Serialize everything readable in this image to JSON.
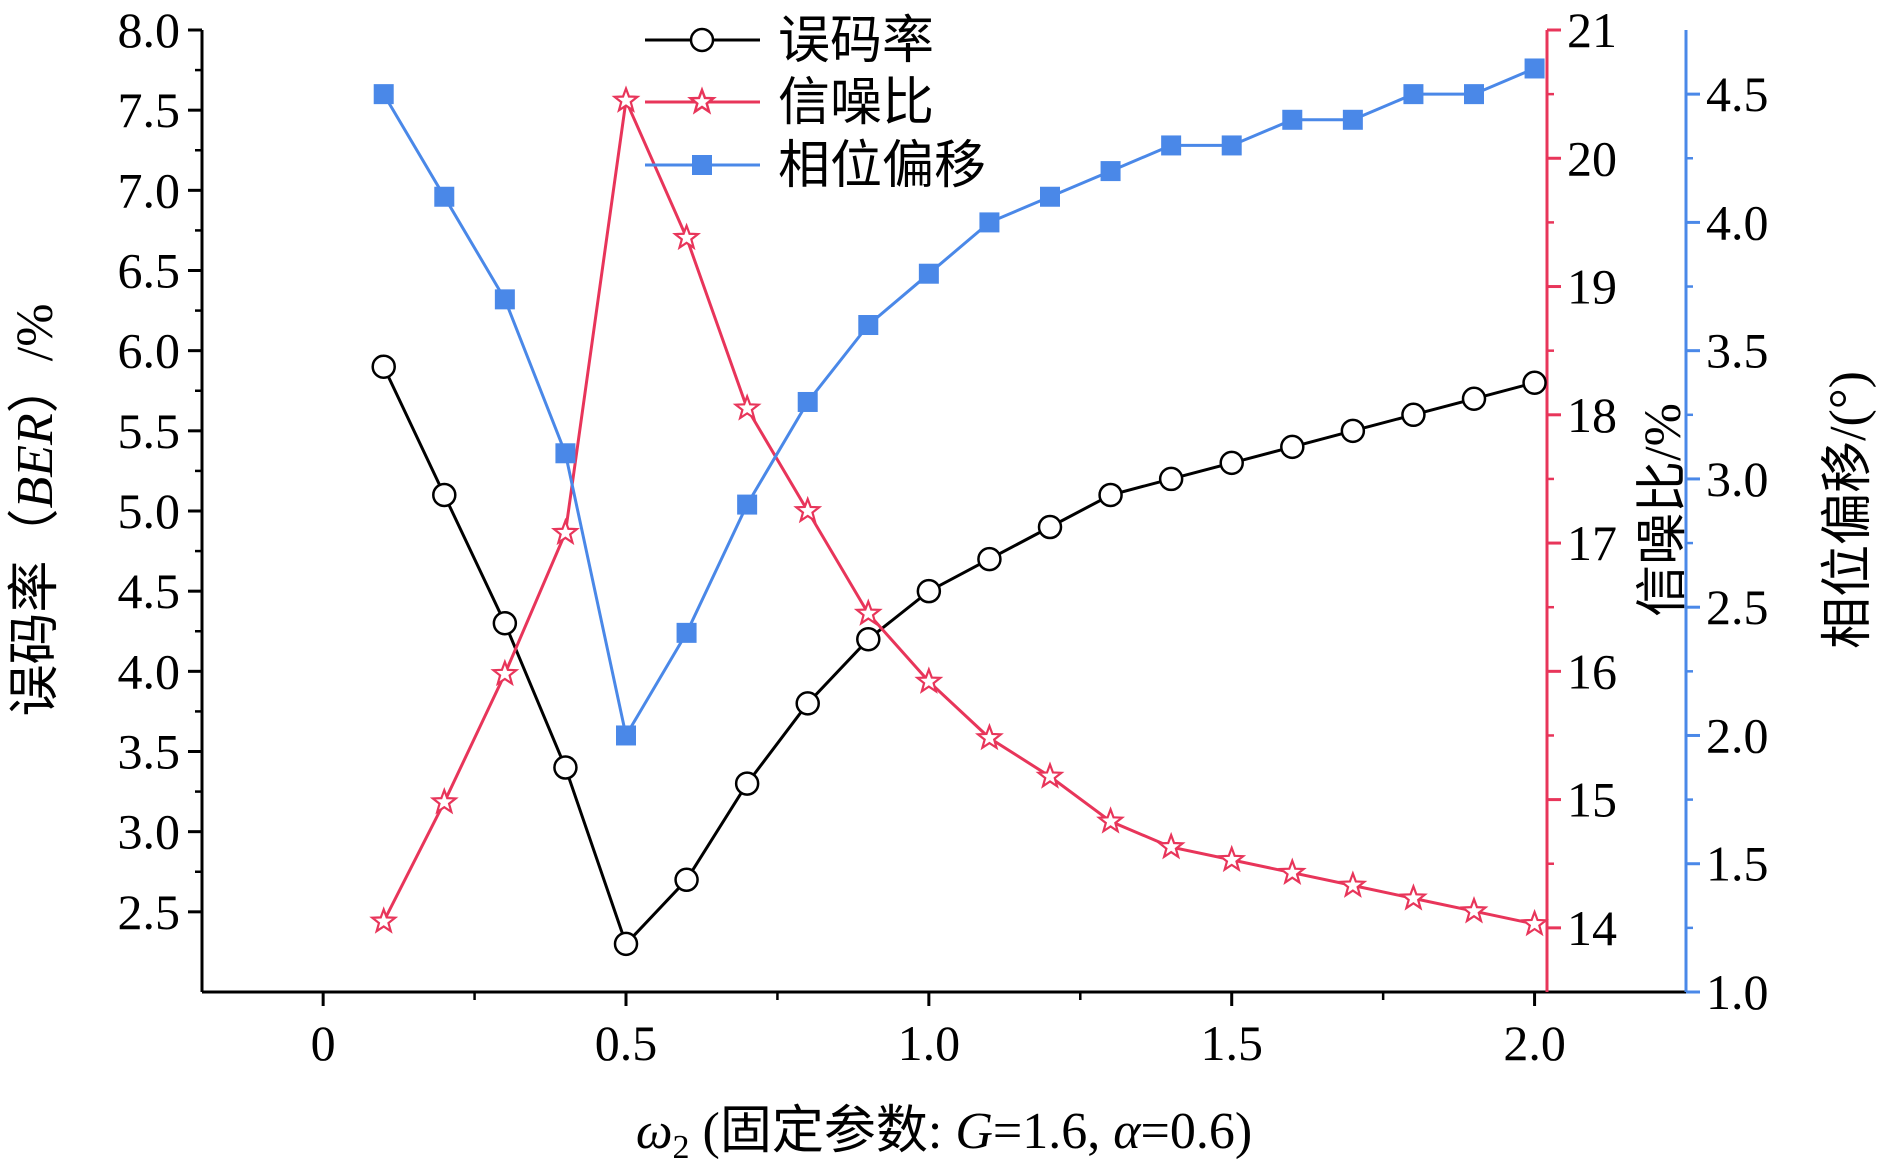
{
  "chart_data": {
    "type": "line",
    "xlabel": {
      "prefix": "ω",
      "subscript": "2",
      "text1": " (固定参数: ",
      "param1": "G",
      "text2": "=1.6, ",
      "param2": "α",
      "text3": "=0.6)"
    },
    "xlim": [
      -0.2,
      2.25
    ],
    "x_ticks": [
      0,
      0.5,
      1.0,
      1.5,
      2.0
    ],
    "x_tick_labels": [
      "0",
      "0.5",
      "1.0",
      "1.5",
      "2.0"
    ],
    "x_minor_ticks": [
      0.25,
      0.75,
      1.25,
      1.75
    ],
    "x": [
      0.1,
      0.2,
      0.3,
      0.4,
      0.5,
      0.6,
      0.7,
      0.8,
      0.9,
      1.0,
      1.1,
      1.2,
      1.3,
      1.4,
      1.5,
      1.6,
      1.7,
      1.8,
      1.9,
      2.0
    ],
    "axes": {
      "left": {
        "label": "误码率（BER）/%",
        "label_parts": [
          "误码率（",
          "BER",
          "）/%"
        ],
        "ylim": [
          2.0,
          8.0
        ],
        "ticks": [
          2.5,
          3.0,
          3.5,
          4.0,
          4.5,
          5.0,
          5.5,
          6.0,
          6.5,
          7.0,
          7.5,
          8.0
        ],
        "tick_labels": [
          "2.5",
          "3.0",
          "3.5",
          "4.0",
          "4.5",
          "5.0",
          "5.5",
          "6.0",
          "6.5",
          "7.0",
          "7.5",
          "8.0"
        ],
        "color": "#000000"
      },
      "right1": {
        "label": "信噪比/%",
        "ylim": [
          13.5,
          21.0
        ],
        "ticks": [
          14,
          15,
          16,
          17,
          18,
          19,
          20,
          21
        ],
        "tick_labels": [
          "14",
          "15",
          "16",
          "17",
          "18",
          "19",
          "20",
          "21"
        ],
        "color": "#e8355a"
      },
      "right2": {
        "label": "相位偏移/(°)",
        "ylim": [
          1.0,
          4.75
        ],
        "ticks": [
          1.0,
          1.5,
          2.0,
          2.5,
          3.0,
          3.5,
          4.0,
          4.5
        ],
        "tick_labels": [
          "1.0",
          "1.5",
          "2.0",
          "2.5",
          "3.0",
          "3.5",
          "4.0",
          "4.5"
        ],
        "color": "#4a88e8"
      }
    },
    "series": [
      {
        "name": "误码率",
        "axis": "left",
        "color": "#000000",
        "marker": "circle",
        "values": [
          5.9,
          5.1,
          4.3,
          3.4,
          2.3,
          2.7,
          3.3,
          3.8,
          4.2,
          4.5,
          4.7,
          4.9,
          5.1,
          5.2,
          5.3,
          5.4,
          5.5,
          5.6,
          5.7,
          5.8
        ]
      },
      {
        "name": "信噪比",
        "axis": "right1",
        "color": "#e8355a",
        "marker": "star",
        "values": [
          14.05,
          14.98,
          15.98,
          17.08,
          20.45,
          19.38,
          18.05,
          17.25,
          16.45,
          15.92,
          15.48,
          15.18,
          14.83,
          14.63,
          14.53,
          14.43,
          14.33,
          14.23,
          14.13,
          14.03
        ]
      },
      {
        "name": "相位偏移",
        "axis": "right2",
        "color": "#4a88e8",
        "marker": "square",
        "values": [
          4.5,
          4.1,
          3.7,
          3.1,
          2.0,
          2.4,
          2.9,
          3.3,
          3.6,
          3.8,
          4.0,
          4.1,
          4.2,
          4.3,
          4.3,
          4.4,
          4.4,
          4.5,
          4.5,
          4.6
        ]
      }
    ],
    "legend": {
      "placement": "top-center",
      "entries": [
        "误码率",
        "信噪比",
        "相位偏移"
      ]
    }
  }
}
